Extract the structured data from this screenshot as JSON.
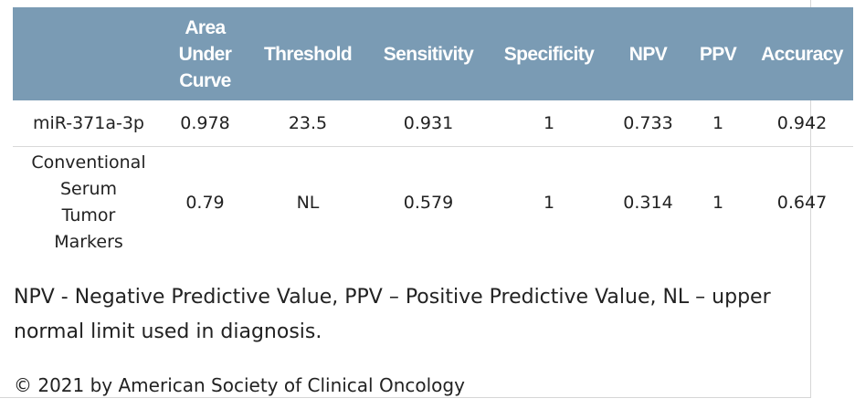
{
  "table": {
    "headers": [
      "",
      "Area Under Curve",
      "Threshold",
      "Sensitivity",
      "Specificity",
      "NPV",
      "PPV",
      "Accuracy"
    ],
    "header_lines": {
      "auc": [
        "Area",
        "Under",
        "Curve"
      ]
    },
    "rows": [
      {
        "marker": "miR-371a-3p",
        "marker_lines": [
          "miR-371a-3p"
        ],
        "auc": "0.978",
        "threshold": "23.5",
        "sensitivity": "0.931",
        "specificity": "1",
        "npv": "0.733",
        "ppv": "1",
        "accuracy": "0.942"
      },
      {
        "marker": "Conventional Serum Tumor Markers",
        "marker_lines": [
          "Conventional",
          "Serum",
          "Tumor",
          "Markers"
        ],
        "auc": "0.79",
        "threshold": "NL",
        "sensitivity": "0.579",
        "specificity": "1",
        "npv": "0.314",
        "ppv": "1",
        "accuracy": "0.647"
      }
    ]
  },
  "footnote": "NPV - Negative Predictive Value, PPV – Positive Predictive Value, NL – upper normal limit used in diagnosis.",
  "copyright": "© 2021 by American Society of Clinical Oncology",
  "colors": {
    "header_bg": "#7a9bb4",
    "header_text": "#ffffff",
    "body_text": "#222222",
    "row_divider": "#d9d9d9"
  }
}
